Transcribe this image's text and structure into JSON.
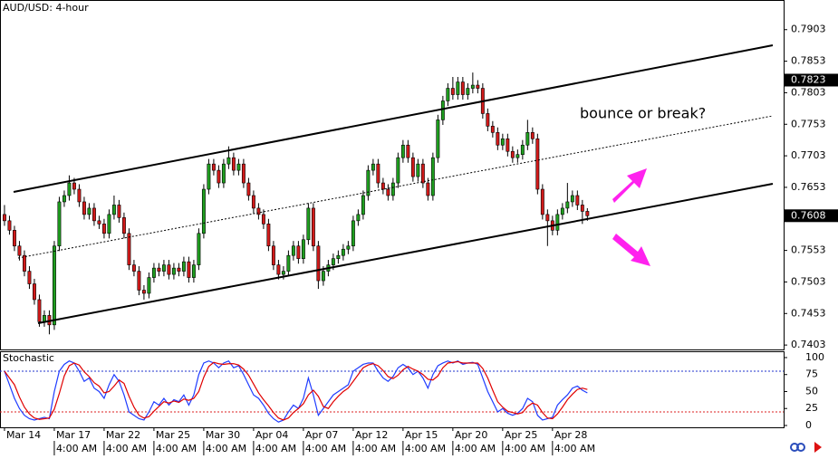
{
  "chart_data": [
    {
      "type": "candlestick",
      "title": "AUD/USD: 4-hour",
      "annotation": "bounce or break?",
      "open": [
        0.761,
        0.76,
        0.7585,
        0.756,
        0.7545,
        0.752,
        0.75,
        0.7475,
        0.744,
        0.745,
        0.7435,
        0.756,
        0.763,
        0.764,
        0.766,
        0.765,
        0.763,
        0.761,
        0.762,
        0.76,
        0.7595,
        0.758,
        0.761,
        0.7625,
        0.7605,
        0.758,
        0.753,
        0.752,
        0.749,
        0.7485,
        0.751,
        0.7525,
        0.752,
        0.753,
        0.7515,
        0.7525,
        0.752,
        0.7535,
        0.751,
        0.753,
        0.758,
        0.765,
        0.769,
        0.768,
        0.766,
        0.769,
        0.77,
        0.768,
        0.769,
        0.766,
        0.764,
        0.762,
        0.761,
        0.7595,
        0.756,
        0.753,
        0.7515,
        0.752,
        0.7545,
        0.756,
        0.754,
        0.757,
        0.762,
        0.756,
        0.7505,
        0.752,
        0.753,
        0.754,
        0.7545,
        0.7555,
        0.756,
        0.76,
        0.761,
        0.764,
        0.768,
        0.769,
        0.766,
        0.765,
        0.764,
        0.766,
        0.77,
        0.772,
        0.77,
        0.767,
        0.769,
        0.766,
        0.764,
        0.77,
        0.776,
        0.779,
        0.781,
        0.78,
        0.782,
        0.78,
        0.781,
        0.7815,
        0.781,
        0.777,
        0.775,
        0.774,
        0.772,
        0.773,
        0.771,
        0.77,
        0.7705,
        0.772,
        0.774,
        0.773,
        0.765,
        0.761,
        0.76,
        0.7585,
        0.761,
        0.762,
        0.763,
        0.764,
        0.7625,
        0.7615
      ],
      "high": [
        0.7625,
        0.7608,
        0.7592,
        0.7568,
        0.7553,
        0.7528,
        0.7508,
        0.7483,
        0.7458,
        0.7458,
        0.7568,
        0.7638,
        0.7648,
        0.7672,
        0.7668,
        0.7658,
        0.7638,
        0.7628,
        0.7628,
        0.7608,
        0.7603,
        0.7618,
        0.764,
        0.7633,
        0.7613,
        0.7588,
        0.7538,
        0.7528,
        0.7498,
        0.7518,
        0.7533,
        0.7533,
        0.7538,
        0.7538,
        0.7533,
        0.7533,
        0.7543,
        0.7543,
        0.7538,
        0.7588,
        0.7658,
        0.7698,
        0.7698,
        0.7688,
        0.7698,
        0.7718,
        0.7708,
        0.7698,
        0.7698,
        0.7668,
        0.7648,
        0.7628,
        0.7618,
        0.7603,
        0.7568,
        0.7538,
        0.7528,
        0.7553,
        0.7568,
        0.7568,
        0.7578,
        0.7628,
        0.7628,
        0.7568,
        0.7528,
        0.7538,
        0.7548,
        0.7553,
        0.7563,
        0.7568,
        0.7608,
        0.7618,
        0.7648,
        0.7688,
        0.7698,
        0.7698,
        0.7668,
        0.7658,
        0.7668,
        0.7708,
        0.7728,
        0.7728,
        0.7708,
        0.7698,
        0.7698,
        0.7668,
        0.7708,
        0.7768,
        0.7798,
        0.7818,
        0.7828,
        0.7828,
        0.7828,
        0.7818,
        0.7835,
        0.7823,
        0.7818,
        0.7778,
        0.7758,
        0.7748,
        0.7738,
        0.7738,
        0.7718,
        0.7713,
        0.7728,
        0.776,
        0.7748,
        0.7738,
        0.7658,
        0.7618,
        0.7608,
        0.7618,
        0.7628,
        0.766,
        0.7648,
        0.7648,
        0.7633,
        0.762
      ],
      "low": [
        0.7592,
        0.7578,
        0.7552,
        0.7537,
        0.7512,
        0.7492,
        0.7467,
        0.7432,
        0.7432,
        0.742,
        0.7427,
        0.7552,
        0.7622,
        0.7632,
        0.7642,
        0.7622,
        0.7602,
        0.7602,
        0.7592,
        0.7587,
        0.7572,
        0.7572,
        0.7602,
        0.7597,
        0.7572,
        0.7522,
        0.7512,
        0.7482,
        0.7475,
        0.7477,
        0.7502,
        0.7512,
        0.7512,
        0.7507,
        0.7507,
        0.7512,
        0.7512,
        0.7502,
        0.7502,
        0.7522,
        0.7572,
        0.7642,
        0.7672,
        0.7652,
        0.7652,
        0.7682,
        0.7672,
        0.7672,
        0.7652,
        0.7632,
        0.7612,
        0.7602,
        0.7587,
        0.7552,
        0.7522,
        0.7507,
        0.7507,
        0.7512,
        0.7537,
        0.7532,
        0.7532,
        0.7562,
        0.7552,
        0.7492,
        0.7497,
        0.7512,
        0.7522,
        0.7532,
        0.7537,
        0.7547,
        0.7552,
        0.7592,
        0.7602,
        0.7632,
        0.7672,
        0.7652,
        0.7642,
        0.7632,
        0.7632,
        0.7652,
        0.7692,
        0.7692,
        0.7662,
        0.7662,
        0.7652,
        0.7632,
        0.7632,
        0.7692,
        0.7752,
        0.7782,
        0.7792,
        0.7792,
        0.7792,
        0.7792,
        0.7802,
        0.7802,
        0.7762,
        0.7742,
        0.7732,
        0.7712,
        0.7712,
        0.7702,
        0.7692,
        0.7692,
        0.7697,
        0.7712,
        0.7722,
        0.7642,
        0.7602,
        0.756,
        0.7577,
        0.7577,
        0.7602,
        0.7612,
        0.7622,
        0.7617,
        0.7595,
        0.76
      ],
      "close": [
        0.76,
        0.7585,
        0.756,
        0.7545,
        0.752,
        0.75,
        0.7475,
        0.744,
        0.745,
        0.7435,
        0.756,
        0.763,
        0.764,
        0.766,
        0.765,
        0.763,
        0.761,
        0.762,
        0.76,
        0.7595,
        0.758,
        0.761,
        0.7625,
        0.7605,
        0.758,
        0.753,
        0.752,
        0.749,
        0.7485,
        0.751,
        0.7525,
        0.752,
        0.753,
        0.7515,
        0.7525,
        0.752,
        0.7535,
        0.751,
        0.753,
        0.758,
        0.765,
        0.769,
        0.768,
        0.766,
        0.769,
        0.77,
        0.768,
        0.769,
        0.766,
        0.764,
        0.762,
        0.761,
        0.7595,
        0.756,
        0.753,
        0.7515,
        0.752,
        0.7545,
        0.756,
        0.754,
        0.757,
        0.762,
        0.756,
        0.7505,
        0.752,
        0.753,
        0.754,
        0.7545,
        0.7555,
        0.756,
        0.76,
        0.761,
        0.764,
        0.768,
        0.769,
        0.766,
        0.765,
        0.764,
        0.766,
        0.77,
        0.772,
        0.77,
        0.767,
        0.769,
        0.766,
        0.764,
        0.77,
        0.776,
        0.779,
        0.781,
        0.78,
        0.782,
        0.78,
        0.781,
        0.7815,
        0.781,
        0.777,
        0.775,
        0.774,
        0.772,
        0.773,
        0.771,
        0.77,
        0.7705,
        0.772,
        0.774,
        0.773,
        0.765,
        0.761,
        0.76,
        0.7585,
        0.761,
        0.762,
        0.763,
        0.764,
        0.7625,
        0.7615,
        0.7608
      ],
      "up_color": "#1f9e1f",
      "down_color": "#d11a1a",
      "xlim": [
        -0.9,
        156.4
      ],
      "ylim": [
        0.7396,
        0.795
      ],
      "yticks": [
        0.7903,
        0.7853,
        0.7803,
        0.7753,
        0.7703,
        0.7653,
        0.7603,
        0.7553,
        0.7503,
        0.7453,
        0.7403
      ],
      "price_markers": [
        0.7823,
        0.7608
      ],
      "xticks": [
        {
          "value": 0,
          "label": "Mar 14"
        },
        {
          "value": 10,
          "label": "Mar 17"
        },
        {
          "value": 20,
          "label": "Mar 22"
        },
        {
          "value": 30,
          "label": "Mar 25"
        },
        {
          "value": 40,
          "label": "Mar 30"
        },
        {
          "value": 50,
          "label": "Apr 04"
        },
        {
          "value": 60,
          "label": "Apr 07"
        },
        {
          "value": 70,
          "label": "Apr 12"
        },
        {
          "value": 80,
          "label": "Apr 15"
        },
        {
          "value": 90,
          "label": "Apr 20"
        },
        {
          "value": 100,
          "label": "Apr 25"
        },
        {
          "value": 110,
          "label": "Apr 28"
        }
      ],
      "xticks_time": [
        {
          "value": 10,
          "label": "4:00 AM"
        },
        {
          "value": 20,
          "label": "4:00 AM"
        },
        {
          "value": 30,
          "label": "4:00 AM"
        },
        {
          "value": 40,
          "label": "4:00 AM"
        },
        {
          "value": 50,
          "label": "4:00 AM"
        },
        {
          "value": 60,
          "label": "4:00 AM"
        },
        {
          "value": 70,
          "label": "4:00 AM"
        },
        {
          "value": 80,
          "label": "4:00 AM"
        },
        {
          "value": 90,
          "label": "4:00 AM"
        },
        {
          "value": 100,
          "label": "4:00 AM"
        },
        {
          "value": 110,
          "label": "4:00 AM"
        }
      ]
    },
    {
      "type": "line",
      "title": "Stochastic",
      "ylim": [
        -2.7,
        109.3
      ],
      "yticks": [
        100,
        75,
        50,
        25,
        0
      ],
      "levels": [
        80,
        20
      ],
      "level_colors": [
        "#2233cc",
        "#dd2222"
      ],
      "series": [
        {
          "color": "#1f3cff",
          "values": [
            80,
            60,
            40,
            25,
            15,
            10,
            8,
            10,
            12,
            10,
            50,
            80,
            90,
            95,
            92,
            80,
            65,
            70,
            55,
            50,
            40,
            60,
            75,
            65,
            45,
            20,
            15,
            10,
            8,
            20,
            35,
            30,
            40,
            30,
            38,
            35,
            45,
            30,
            45,
            75,
            92,
            95,
            92,
            85,
            92,
            95,
            85,
            88,
            75,
            60,
            45,
            40,
            30,
            18,
            10,
            5,
            8,
            20,
            30,
            25,
            40,
            70,
            45,
            15,
            25,
            35,
            45,
            50,
            55,
            60,
            80,
            85,
            90,
            92,
            92,
            80,
            70,
            65,
            72,
            85,
            90,
            85,
            75,
            80,
            70,
            55,
            75,
            88,
            92,
            95,
            92,
            95,
            90,
            92,
            93,
            90,
            70,
            50,
            35,
            20,
            25,
            18,
            15,
            18,
            25,
            40,
            35,
            15,
            8,
            10,
            12,
            30,
            38,
            45,
            55,
            58,
            52,
            48
          ]
        },
        {
          "color": "#e00000",
          "values": [
            80,
            70,
            60,
            42,
            27,
            17,
            11,
            9,
            10,
            11,
            24,
            47,
            73,
            88,
            92,
            89,
            79,
            72,
            63,
            58,
            48,
            50,
            58,
            67,
            62,
            43,
            27,
            15,
            11,
            13,
            21,
            28,
            35,
            33,
            36,
            34,
            39,
            37,
            40,
            50,
            71,
            87,
            93,
            91,
            90,
            91,
            91,
            89,
            83,
            74,
            61,
            48,
            38,
            29,
            19,
            11,
            8,
            11,
            19,
            25,
            32,
            45,
            52,
            43,
            28,
            25,
            35,
            43,
            50,
            55,
            65,
            75,
            85,
            89,
            91,
            88,
            81,
            72,
            69,
            74,
            82,
            87,
            83,
            80,
            75,
            68,
            67,
            73,
            85,
            92,
            93,
            94,
            92,
            92,
            92,
            92,
            84,
            70,
            52,
            35,
            27,
            21,
            19,
            17,
            19,
            28,
            33,
            30,
            19,
            11,
            10,
            17,
            27,
            38,
            46,
            53,
            55,
            53
          ]
        }
      ]
    }
  ]
}
